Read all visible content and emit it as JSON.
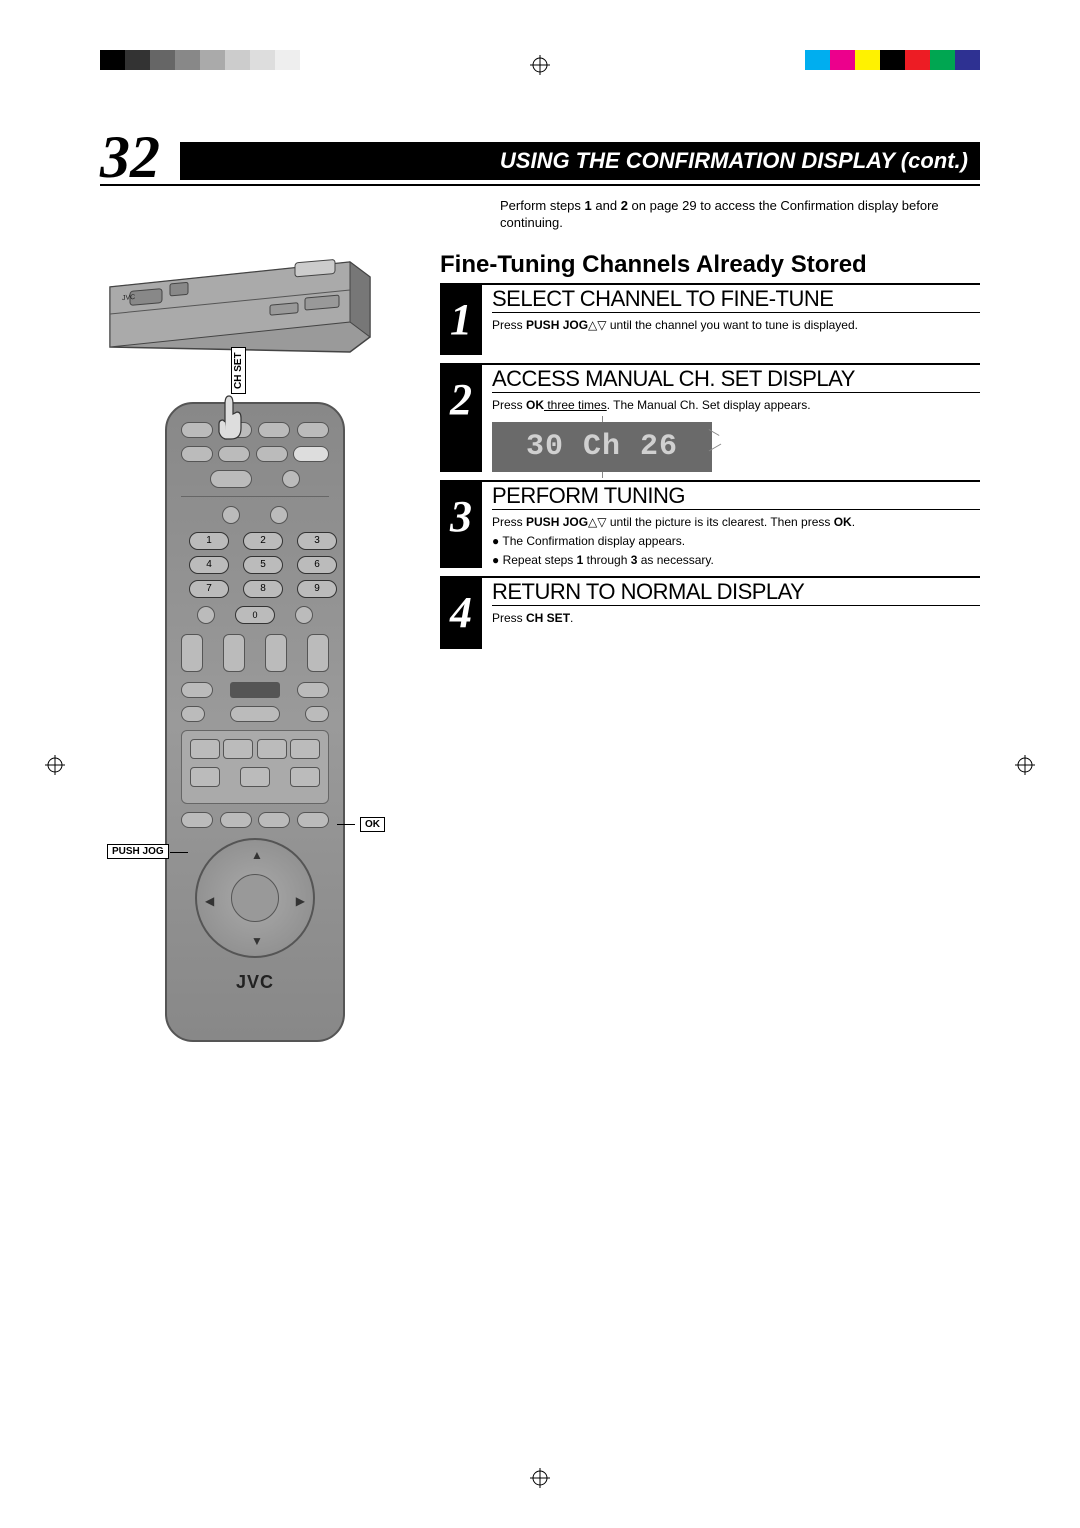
{
  "print_marks": {
    "left_bars": [
      "#000000",
      "#333333",
      "#666666",
      "#888888",
      "#aaaaaa",
      "#cccccc",
      "#dddddd",
      "#eeeeee"
    ],
    "right_bars": [
      "#00aeef",
      "#ec008c",
      "#fff200",
      "#000000",
      "#ed1c24",
      "#00a651",
      "#2e3192"
    ]
  },
  "page_number": "32",
  "header_title": "USING THE CONFIRMATION DISPLAY (cont.)",
  "intro_pre": "Perform steps ",
  "intro_b1": "1",
  "intro_mid": " and ",
  "intro_b2": "2",
  "intro_post": " on page 29 to access the Confirmation display before continuing.",
  "section_title": "Fine-Tuning Channels Already Stored",
  "steps": [
    {
      "num": "1",
      "heading": "SELECT CHANNEL TO FINE-TUNE",
      "body_pre": "Press ",
      "body_bold": "PUSH JOG",
      "body_post": "△▽ until the channel you want to tune is displayed."
    },
    {
      "num": "2",
      "heading": "ACCESS MANUAL CH. SET DISPLAY",
      "body_pre": "Press ",
      "body_bold": "OK",
      "body_u": " three times",
      "body_post": ". The Manual Ch. Set display appears.",
      "lcd": "30 Ch 26"
    },
    {
      "num": "3",
      "heading": "PERFORM TUNING",
      "body_pre": "Press ",
      "body_bold": "PUSH JOG",
      "body_mid": "△▽ until the picture is its clearest. Then press ",
      "body_bold2": "OK",
      "body_post": ".",
      "bullets": [
        "The Confirmation display appears.",
        [
          "Repeat steps ",
          "1",
          " through ",
          "3",
          " as necessary."
        ]
      ]
    },
    {
      "num": "4",
      "heading": "RETURN TO NORMAL DISPLAY",
      "body_pre": "Press ",
      "body_bold": "CH SET",
      "body_post": "."
    }
  ],
  "remote": {
    "labels": {
      "chset": "CH SET",
      "ok": "OK",
      "pushjog": "PUSH JOG"
    },
    "numpad": [
      "1",
      "2",
      "3",
      "4",
      "5",
      "6",
      "7",
      "8",
      "9"
    ],
    "zero": "0",
    "brand": "JVC"
  },
  "vcr_brand": "JVC"
}
